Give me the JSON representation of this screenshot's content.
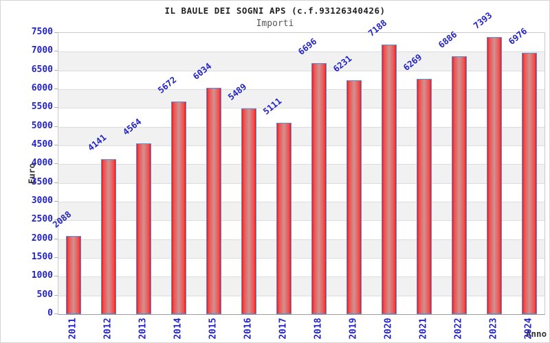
{
  "chart_data": {
    "type": "bar",
    "title": "IL BAULE DEI SOGNI APS (c.f.93126340426)",
    "subtitle": "Importi",
    "xlabel": "Anno",
    "ylabel": "Euro",
    "categories": [
      "2011",
      "2012",
      "2013",
      "2014",
      "2015",
      "2016",
      "2017",
      "2018",
      "2019",
      "2020",
      "2021",
      "2022",
      "2023",
      "2024"
    ],
    "values": [
      2088,
      4141,
      4564,
      5672,
      6034,
      5489,
      5111,
      6696,
      6231,
      7188,
      6269,
      6886,
      7393,
      6976
    ],
    "ylim": [
      0,
      7500
    ],
    "ytick_step": 500,
    "yticks": [
      0,
      500,
      1000,
      1500,
      2000,
      2500,
      3000,
      3500,
      4000,
      4500,
      5000,
      5500,
      6000,
      6500,
      7000,
      7500
    ],
    "grid": true,
    "legend": "none",
    "colors": {
      "bar_edge": "#e81717",
      "bar_mid": "#d09290",
      "bar_border": "#5b8dd9",
      "value_label": "#2323c8",
      "tick_label": "#2323c8",
      "band": "#f1f1f1",
      "gridline": "#dcdcdc",
      "axis_title": "#333333",
      "title": "#222222",
      "subtitle": "#555555"
    }
  }
}
